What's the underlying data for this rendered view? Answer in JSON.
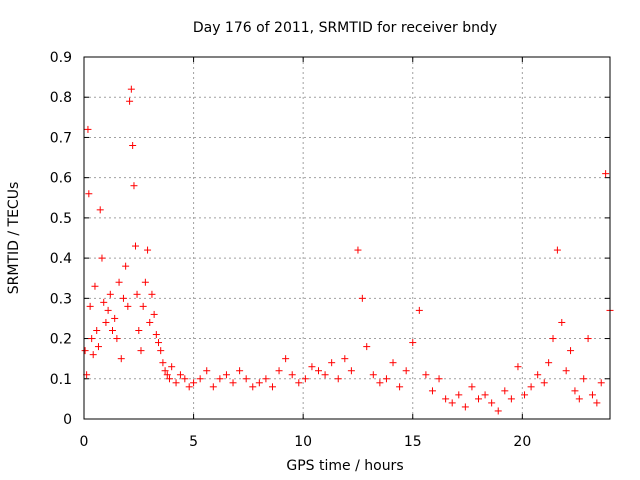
{
  "chart_data": {
    "type": "scatter",
    "title": "Day 176 of 2011, SRMTID for receiver bndy",
    "xlabel": "GPS time / hours",
    "ylabel": "SRMTID / TECUs",
    "xlim": [
      0,
      24
    ],
    "ylim": [
      0,
      0.9
    ],
    "xticks": [
      0,
      5,
      10,
      15,
      20
    ],
    "yticks": [
      0,
      0.1,
      0.2,
      0.3,
      0.4,
      0.5,
      0.6,
      0.7,
      0.8,
      0.9
    ],
    "grid": true,
    "marker": "+",
    "series_color": "#ff0000",
    "series": [
      {
        "name": "SRMTID",
        "x": [
          0.05,
          0.12,
          0.18,
          0.22,
          0.28,
          0.35,
          0.42,
          0.5,
          0.58,
          0.66,
          0.74,
          0.82,
          0.9,
          1.0,
          1.1,
          1.2,
          1.3,
          1.4,
          1.5,
          1.6,
          1.7,
          1.8,
          1.9,
          2.0,
          2.08,
          2.16,
          2.22,
          2.28,
          2.35,
          2.42,
          2.5,
          2.6,
          2.7,
          2.8,
          2.9,
          3.0,
          3.1,
          3.2,
          3.3,
          3.4,
          3.5,
          3.6,
          3.7,
          3.8,
          3.9,
          4.0,
          4.2,
          4.4,
          4.6,
          4.8,
          5.0,
          5.3,
          5.6,
          5.9,
          6.2,
          6.5,
          6.8,
          7.1,
          7.4,
          7.7,
          8.0,
          8.3,
          8.6,
          8.9,
          9.2,
          9.5,
          9.8,
          10.1,
          10.4,
          10.7,
          11.0,
          11.3,
          11.6,
          11.9,
          12.2,
          12.5,
          12.7,
          12.9,
          13.2,
          13.5,
          13.8,
          14.1,
          14.4,
          14.7,
          15.0,
          15.3,
          15.6,
          15.9,
          16.2,
          16.5,
          16.8,
          17.1,
          17.4,
          17.7,
          18.0,
          18.3,
          18.6,
          18.9,
          19.2,
          19.5,
          19.8,
          20.1,
          20.4,
          20.7,
          21.0,
          21.2,
          21.4,
          21.6,
          21.8,
          22.0,
          22.2,
          22.4,
          22.6,
          22.8,
          23.0,
          23.2,
          23.4,
          23.6,
          23.8,
          24.0
        ],
        "y": [
          0.17,
          0.11,
          0.72,
          0.56,
          0.28,
          0.2,
          0.16,
          0.33,
          0.22,
          0.18,
          0.52,
          0.4,
          0.29,
          0.24,
          0.27,
          0.31,
          0.22,
          0.25,
          0.2,
          0.34,
          0.15,
          0.3,
          0.38,
          0.28,
          0.79,
          0.82,
          0.68,
          0.58,
          0.43,
          0.31,
          0.22,
          0.17,
          0.28,
          0.34,
          0.42,
          0.24,
          0.31,
          0.26,
          0.21,
          0.19,
          0.17,
          0.14,
          0.12,
          0.11,
          0.1,
          0.13,
          0.09,
          0.11,
          0.1,
          0.08,
          0.09,
          0.1,
          0.12,
          0.08,
          0.1,
          0.11,
          0.09,
          0.12,
          0.1,
          0.08,
          0.09,
          0.1,
          0.08,
          0.12,
          0.15,
          0.11,
          0.09,
          0.1,
          0.13,
          0.12,
          0.11,
          0.14,
          0.1,
          0.15,
          0.12,
          0.42,
          0.3,
          0.18,
          0.11,
          0.09,
          0.1,
          0.14,
          0.08,
          0.12,
          0.19,
          0.27,
          0.11,
          0.07,
          0.1,
          0.05,
          0.04,
          0.06,
          0.03,
          0.08,
          0.05,
          0.06,
          0.04,
          0.02,
          0.07,
          0.05,
          0.13,
          0.06,
          0.08,
          0.11,
          0.09,
          0.14,
          0.2,
          0.42,
          0.24,
          0.12,
          0.17,
          0.07,
          0.05,
          0.1,
          0.2,
          0.06,
          0.04,
          0.09,
          0.61,
          0.27
        ]
      }
    ]
  }
}
